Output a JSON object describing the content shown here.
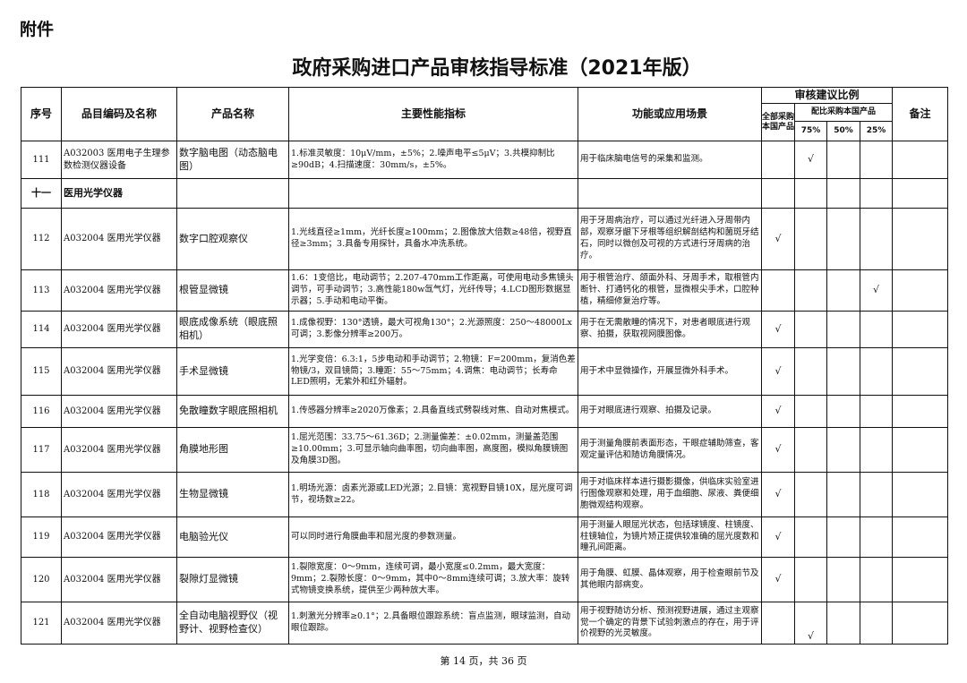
{
  "attachment_label": "附件",
  "title": "政府采购进口产品审核指导标准（2021年版）",
  "header": {
    "seq": "序号",
    "code": "品目编码及名称",
    "product": "产品名称",
    "specs": "主要性能指标",
    "function": "功能或应用场景",
    "ratio_group": "审核建议比例",
    "full_domestic": "全部采购本国产品",
    "partial_group": "配比采购本国产品",
    "p75": "75%",
    "p50": "50%",
    "p25": "25%",
    "remarks": "备注"
  },
  "check_mark": "√",
  "rows": [
    {
      "seq": "111",
      "code": "A032003 医用电子生理参数检测仪器设备",
      "product": "数字脑电图（动态脑电图）",
      "specs": "1.标准灵敏度：10μV/mm，±5%；2.噪声电平≤5μV；3.共模抑制比≥90dB；4.扫描速度：30mm/s，±5%。",
      "function": "用于临床脑电信号的采集和监测。",
      "ratio": "75"
    },
    {
      "section": true,
      "seq": "十一",
      "code": "医用光学仪器"
    },
    {
      "seq": "112",
      "code": "A032004 医用光学仪器",
      "product": "数字口腔观察仪",
      "specs": "1.光线直径≥1mm，光纤长度≥100mm；2.图像放大倍数≥48倍，视野直径≥3mm；3.具备专用探针，具备水冲洗系统。",
      "function": "用于牙周病治疗，可以通过光纤进入牙周带内部，观察牙龈下牙根等组织解剖结构和菌斑牙结石，同时以微创及可视的方式进行牙周病的治疗。",
      "ratio": "full"
    },
    {
      "seq": "113",
      "code": "A032004 医用光学仪器",
      "product": "根管显微镜",
      "specs": "1.6：1变倍比，电动调节；2.207-470mm工作距离，可使用电动多焦镜头调节，可手动调节；3.高性能180w氙气灯，光纤传导；4.LCD图形数据显示器；5.手动和电动平衡。",
      "function": "用于根管治疗、颌面外科、牙周手术，取根管内断针、打通钙化的根管，显微根尖手术，口腔种植，精细修复治疗等。",
      "ratio": "25"
    },
    {
      "seq": "114",
      "code": "A032004 医用光学仪器",
      "product": "眼底成像系统（眼底照相机）",
      "specs": "1.成像视野：130°透镜，最大可视角130°；2.光源照度：250～48000Lx可调；3.影像分辨率≥200万。",
      "function": "用于在无需散瞳的情况下，对患者眼底进行观察、拍摄，获取视网膜图像。",
      "ratio": "full"
    },
    {
      "seq": "115",
      "code": "A032004 医用光学仪器",
      "product": "手术显微镜",
      "specs": "1.光学变倍：6.3:1，5步电动和手动调节；2.物镜：F=200mm，复消色差物镜/3，双目镜筒；3.瞳距：55～75mm；4.调焦：电动调节；长寿命LED照明，无紫外和红外辐射。",
      "function": "用于术中显微操作，开展显微外科手术。",
      "ratio": "full"
    },
    {
      "seq": "116",
      "code": "A032004 医用光学仪器",
      "product": "免散瞳数字眼底照相机",
      "specs": "1.传感器分辨率≥2020万像素；2.具备直线式劈裂线对焦、自动对焦模式。",
      "function": "用于对眼底进行观察、拍摄及记录。",
      "ratio": "full"
    },
    {
      "seq": "117",
      "code": "A032004 医用光学仪器",
      "product": "角膜地形图",
      "specs": "1.屈光范围：33.75～61.36D；2.测量偏差：±0.02mm，测量盖范围≥10.00mm；3.可显示轴向曲率图，切向曲率图，高度图，模拟角膜镜图及角膜3D图。",
      "function": "用于测量角膜前表面形态，干眼症辅助筛查，客观定量评估和随访角膜情况。",
      "ratio": "full"
    },
    {
      "seq": "118",
      "code": "A032004 医用光学仪器",
      "product": "生物显微镜",
      "specs": "1.明场光源：卤素光源或LED光源；2.目镜：宽视野目镜10X，屈光度可调节，视场数≥22。",
      "function": "用于对临床样本进行摄影摄像，供临床实验室进行图像观察和处理，用于血细胞、尿液、粪便细胞微观结构观察。",
      "ratio": "full"
    },
    {
      "seq": "119",
      "code": "A032004 医用光学仪器",
      "product": "电脑验光仪",
      "specs": "可以同时进行角膜曲率和屈光度的参数测量。",
      "function": "用于测量人眼屈光状态，包括球镜度、柱镜度、柱镜轴位，为镜片矫正提供较准确的屈光度数和瞳孔间距离。",
      "ratio": "full"
    },
    {
      "seq": "120",
      "code": "A032004 医用光学仪器",
      "product": "裂隙灯显微镜",
      "specs": "1.裂隙宽度：0～9mm，连续可调，最小宽度≤0.2mm，最大宽度：9mm；2.裂隙长度：0～9mm，其中0～8mm连续可调；3.放大率：旋转式物镜变换系统，提供至少两种放大率。",
      "function": "用于角膜、虹膜、晶体观察，用于检查眼前节及其他眼内部病变。",
      "ratio": "full"
    },
    {
      "seq": "121",
      "code": "A032004 医用光学仪器",
      "product": "全自动电脑视野仪（视野计、视野检查仪）",
      "specs": "1.刺激光分辨率≥0.1°；2.具备眼位跟踪系统：盲点监测，眼球监测，自动眼位跟踪。",
      "function": "用于视野随访分析、预测视野进展，通过主观察觉一个确定的背景下试验刺激点的存在，用于评价视野的光灵敏度。",
      "ratio": "75"
    }
  ],
  "footer": "第 14 页，共 36 页"
}
